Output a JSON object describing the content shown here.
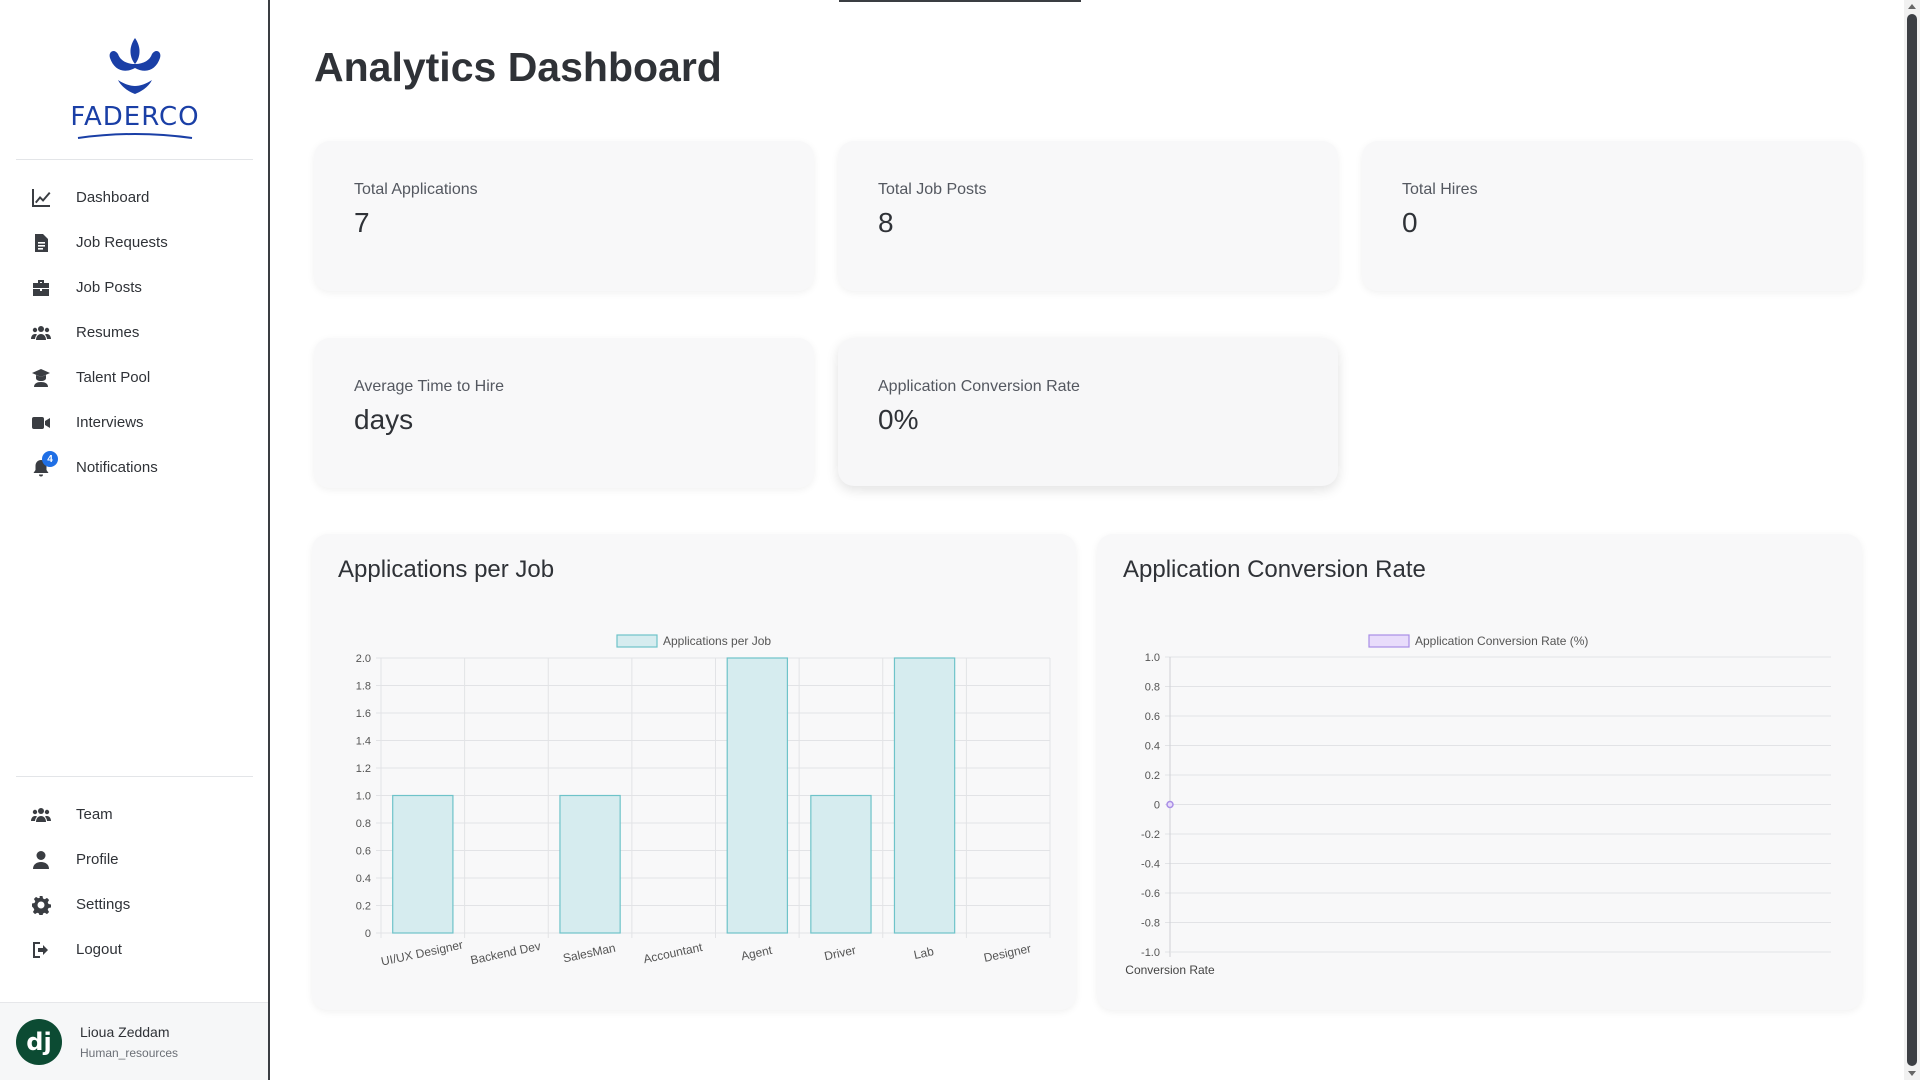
{
  "brand": {
    "name": "FADERCO",
    "color": "#1a3fa6"
  },
  "nav_main": [
    {
      "label": "Dashboard",
      "icon": "chart-line-icon"
    },
    {
      "label": "Job Requests",
      "icon": "file-icon"
    },
    {
      "label": "Job Posts",
      "icon": "briefcase-icon"
    },
    {
      "label": "Resumes",
      "icon": "users-icon"
    },
    {
      "label": "Talent Pool",
      "icon": "graduate-icon"
    },
    {
      "label": "Interviews",
      "icon": "video-icon"
    },
    {
      "label": "Notifications",
      "icon": "bell-icon",
      "badge": "4"
    }
  ],
  "nav_bottom": [
    {
      "label": "Team",
      "icon": "users-icon"
    },
    {
      "label": "Profile",
      "icon": "user-icon"
    },
    {
      "label": "Settings",
      "icon": "gear-icon"
    },
    {
      "label": "Logout",
      "icon": "logout-icon"
    }
  ],
  "user": {
    "avatar": "dj",
    "name": "Lioua Zeddam",
    "role": "Human_resources"
  },
  "page": {
    "title": "Analytics Dashboard"
  },
  "stats": {
    "total_applications": {
      "label": "Total Applications",
      "value": "7"
    },
    "total_job_posts": {
      "label": "Total Job Posts",
      "value": "8"
    },
    "total_hires": {
      "label": "Total Hires",
      "value": "0"
    },
    "avg_time_to_hire": {
      "label": "Average Time to Hire",
      "value": "days"
    },
    "conversion_rate": {
      "label": "Application Conversion Rate",
      "value": "0%"
    }
  },
  "charts": {
    "applications_title": "Applications per Job",
    "conversion_title": "Application Conversion Rate"
  },
  "chart_data": [
    {
      "type": "bar",
      "title": "Applications per Job",
      "categories": [
        "UI/UX Designer",
        "Backend Dev",
        "SalesMan",
        "Accountant",
        "Agent",
        "Driver",
        "Lab",
        "Designer"
      ],
      "series": [
        {
          "name": "Applications per Job",
          "values": [
            1,
            0,
            1,
            0,
            2,
            1,
            2,
            0
          ]
        }
      ],
      "ylim": [
        0,
        2.0
      ],
      "yticks": [
        "0",
        "0.2",
        "0.4",
        "0.6",
        "0.8",
        "1.0",
        "1.2",
        "1.4",
        "1.6",
        "1.8",
        "2.0"
      ],
      "grid": true,
      "legend": "top-center",
      "colors": {
        "fill": "#d6ecef",
        "stroke": "#6ec3c9"
      }
    },
    {
      "type": "line",
      "title": "Application Conversion Rate",
      "categories": [
        "Conversion Rate"
      ],
      "series": [
        {
          "name": "Application Conversion Rate (%)",
          "values": [
            0
          ]
        }
      ],
      "ylim": [
        -1.0,
        1.0
      ],
      "yticks": [
        "-1.0",
        "-0.8",
        "-0.6",
        "-0.4",
        "-0.2",
        "0",
        "0.2",
        "0.4",
        "0.6",
        "0.8",
        "1.0"
      ],
      "grid": true,
      "legend": "top-center",
      "colors": {
        "fill": "#e8dcfb",
        "stroke": "#a98ee6"
      }
    }
  ]
}
